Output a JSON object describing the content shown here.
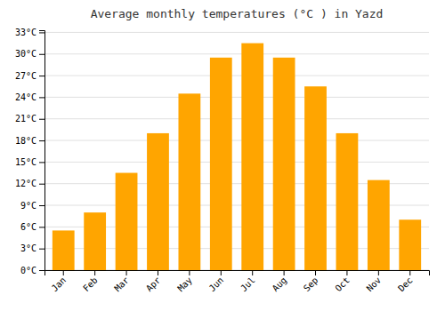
{
  "chart_data": {
    "type": "bar",
    "title": "Average monthly temperatures (°C ) in Yazd",
    "categories": [
      "Jan",
      "Feb",
      "Mar",
      "Apr",
      "May",
      "Jun",
      "Jul",
      "Aug",
      "Sep",
      "Oct",
      "Nov",
      "Dec"
    ],
    "values": [
      5.5,
      8.0,
      13.5,
      19.0,
      24.5,
      29.5,
      31.5,
      29.5,
      25.5,
      19.0,
      12.5,
      7.0
    ],
    "color": "#FFA500",
    "ylim": [
      0,
      33.3
    ],
    "yticks": [
      {
        "value": 0,
        "label": "0°C"
      },
      {
        "value": 3,
        "label": "3°C"
      },
      {
        "value": 6,
        "label": "6°C"
      },
      {
        "value": 9,
        "label": "9°C"
      },
      {
        "value": 12,
        "label": "12°C"
      },
      {
        "value": 15,
        "label": "15°C"
      },
      {
        "value": 18,
        "label": "18°C"
      },
      {
        "value": 21,
        "label": "21°C"
      },
      {
        "value": 24,
        "label": "24°C"
      },
      {
        "value": 27,
        "label": "27°C"
      },
      {
        "value": 30,
        "label": "30°C"
      },
      {
        "value": 33,
        "label": "33°C"
      }
    ],
    "grid": true
  }
}
